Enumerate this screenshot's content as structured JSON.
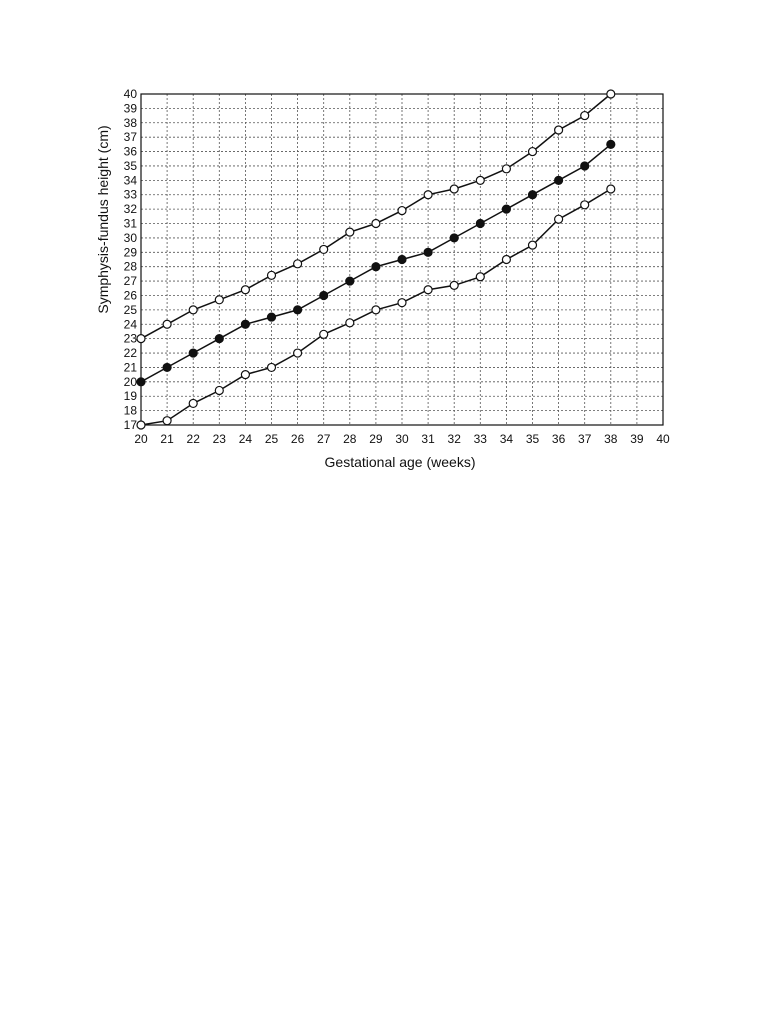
{
  "chart_data": {
    "type": "line",
    "title": "",
    "xlabel": "Gestational age (weeks)",
    "ylabel": "Symphysis-fundus height (cm)",
    "xlim": [
      20,
      40
    ],
    "ylim": [
      17,
      40
    ],
    "x_ticks": [
      "20",
      "21",
      "22",
      "23",
      "24",
      "25",
      "26",
      "27",
      "28",
      "29",
      "30",
      "31",
      "32",
      "33",
      "34",
      "35",
      "36",
      "37",
      "38",
      "39",
      "40"
    ],
    "y_ticks": [
      "17",
      "18",
      "19",
      "20",
      "21",
      "22",
      "23",
      "24",
      "25",
      "26",
      "27",
      "28",
      "29",
      "30",
      "31",
      "32",
      "33",
      "34",
      "35",
      "36",
      "37",
      "38",
      "39",
      "40"
    ],
    "grid": true,
    "legend": "none",
    "x": [
      20,
      21,
      22,
      23,
      24,
      25,
      26,
      27,
      28,
      29,
      30,
      31,
      32,
      33,
      34,
      35,
      36,
      37,
      38
    ],
    "series": [
      {
        "marker": "open",
        "values": [
          23,
          24,
          25,
          25.7,
          26.4,
          27.4,
          28.2,
          29.2,
          30.4,
          31,
          31.9,
          33,
          33.4,
          34,
          34.8,
          36,
          37.5,
          38.5,
          40
        ]
      },
      {
        "marker": "filled",
        "values": [
          20,
          21,
          22,
          23,
          24,
          24.5,
          25,
          26,
          27,
          28,
          28.5,
          29,
          30,
          31,
          32,
          33,
          34,
          35,
          36.5
        ]
      },
      {
        "marker": "open",
        "values": [
          17,
          17.3,
          18.5,
          19.4,
          20.5,
          21,
          22,
          23.3,
          24.1,
          25,
          25.5,
          26.4,
          26.7,
          27.3,
          28.5,
          29.5,
          31.3,
          32.3,
          33.4
        ]
      }
    ]
  }
}
